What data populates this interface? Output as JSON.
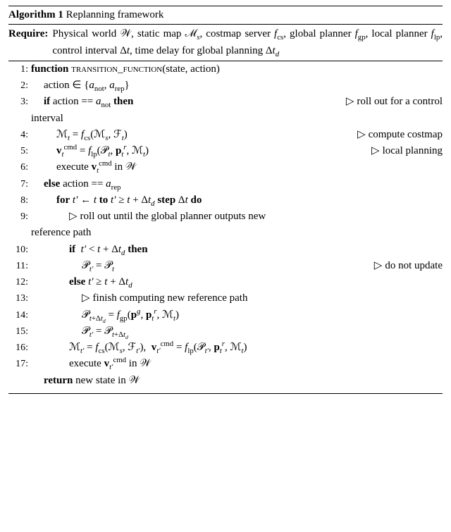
{
  "colors": {
    "text": "#000000",
    "background": "#ffffff",
    "rule": "#000000"
  },
  "typography": {
    "font_family": "Times New Roman",
    "base_size_pt": 11,
    "line_height": 1.55
  },
  "algorithm": {
    "number": "1",
    "title_prefix": "Algorithm 1",
    "title_rest": "Replanning framework",
    "require_label": "Require:",
    "require_text_html": "Physical world 𝒲, static map ℳ<sub><i>s</i></sub>, costmap server <i>f</i><sub>cs</sub>, global planner <i>f</i><sub>gp</sub>, local planner <i>f</i><sub>lp</sub>, control interval Δ<i>t</i>, time delay for global planning Δ<i>t</i><sub><i>d</i></sub>",
    "function_kw": "function",
    "function_name": "transition_function",
    "function_args": "(state, action)",
    "if_kw": "if",
    "then_kw": "then",
    "else_kw": "else",
    "for_kw": "for",
    "to_kw": "to",
    "step_kw": "step",
    "do_kw": "do",
    "return_kw": "return",
    "return_text_html": "new state in 𝒲",
    "lines": [
      {
        "n": "1:",
        "indent": 0,
        "html": "<span class='kw'>function</span> <span class='sc'>transition_function</span>(state, action)"
      },
      {
        "n": "2:",
        "indent": 1,
        "html": "action ∈ {<i>a</i><sub>not</sub>, <i>a</i><sub>rep</sub>}"
      },
      {
        "n": "3:",
        "indent": 1,
        "html": "<span class='kw'>if</span> action == <i>a</i><sub>not</sub> <span class='kw'>then</span><span class='comment tri'>roll out for a control</span>",
        "wrap_html": "interval",
        "wrap_indent": 0
      },
      {
        "n": "4:",
        "indent": 2,
        "html": "ℳ<sub><i>t</i></sub> = <i>f</i><sub>cs</sub>(ℳ<sub><i>s</i></sub>, ℱ<sub><i>t</i></sub>)<span class='comment tri'>compute costmap</span>"
      },
      {
        "n": "5:",
        "indent": 2,
        "html": "<b>v</b><sub><i>t</i></sub><sup>cmd</sup> = <i>f</i><sub>lp</sub>(𝒫<sub><i>t</i></sub>, <b>p</b><sub><i>t</i></sub><sup><i>r</i></sup>, ℳ<sub><i>t</i></sub>)<span class='comment tri'>local planning</span>"
      },
      {
        "n": "6:",
        "indent": 2,
        "html": "execute <b>v</b><sub><i>t</i></sub><sup>cmd</sup> in 𝒲"
      },
      {
        "n": "7:",
        "indent": 1,
        "html": "<span class='kw'>else</span> action == <i>a</i><sub>rep</sub>"
      },
      {
        "n": "8:",
        "indent": 2,
        "html": "<span class='kw'>for</span> <i>t′</i> ← <i>t</i> <span class='kw'>to</span> <i>t′</i> ≥ <i>t</i> + Δ<i>t</i><sub><i>d</i></sub> <span class='kw'>step</span> Δ<i>t</i> <span class='kw'>do</span>"
      },
      {
        "n": "9:",
        "indent": 3,
        "html": "<span class='tri'></span>roll out until the global planner outputs new",
        "wrap_html": "reference path",
        "wrap_indent": 0
      },
      {
        "n": "10:",
        "indent": 3,
        "html": "<span class='kw'>if</span>&nbsp; <i>t′</i> &lt; <i>t</i> + Δ<i>t</i><sub><i>d</i></sub> <span class='kw'>then</span>"
      },
      {
        "n": "11:",
        "indent": 4,
        "html": "𝒫<sub><i>t′</i></sub> = 𝒫<sub><i>t</i></sub><span class='comment tri'>do not update</span>"
      },
      {
        "n": "12:",
        "indent": 3,
        "html": "<span class='kw'>else</span> <i>t′</i> ≥ <i>t</i> + Δ<i>t</i><sub><i>d</i></sub>"
      },
      {
        "n": "13:",
        "indent": 4,
        "html": "<span class='tri'></span>finish computing new reference path"
      },
      {
        "n": "14:",
        "indent": 4,
        "html": "𝒫<sub><i>t</i>+Δ<i>t</i><sub><i>d</i></sub></sub> = <i>f</i><sub>gp</sub>(<b>p</b><sup><i>g</i></sup>, <b>p</b><sub><i>t</i></sub><sup><i>r</i></sup>, ℳ<sub><i>t</i></sub>)"
      },
      {
        "n": "15:",
        "indent": 4,
        "html": "𝒫<sub><i>t′</i></sub> = 𝒫<sub><i>t</i>+Δ<i>t</i><sub><i>d</i></sub></sub>"
      },
      {
        "n": "16:",
        "indent": 3,
        "html": "ℳ<sub><i>t′</i></sub> = <i>f</i><sub>cs</sub>(ℳ<sub><i>s</i></sub>, ℱ<sub><i>t′</i></sub>),&nbsp; <b>v</b><sub><i>t′</i></sub><sup>cmd</sup> = <i>f</i><sub>lp</sub>(𝒫<sub><i>t′</i></sub>, <b>p</b><sub><i>t</i></sub><sup><i>r</i></sup>, ℳ<sub><i>t</i></sub>)"
      },
      {
        "n": "17:",
        "indent": 3,
        "html": "execute <b>v</b><sub><i>t′</i></sub><sup>cmd</sup> in 𝒲"
      }
    ]
  }
}
